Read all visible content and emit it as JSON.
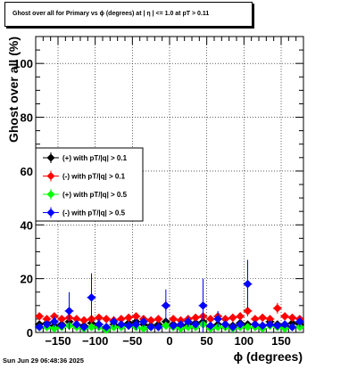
{
  "header": {
    "title": "Ghost over all for Primary vs ϕ (degrees) at |  η  | <= 1.0 at pT > 0.11"
  },
  "footer": {
    "timestamp": "Sun Jun 29 06:48:36 2025"
  },
  "chart_data": {
    "type": "scatter",
    "title": "Ghost over all for Primary vs ϕ (degrees) at |  η  | <= 1.0 at pT > 0.11",
    "xlabel": "ϕ (degrees)",
    "ylabel": "Ghost over all (%)",
    "xlim": [
      -180,
      180
    ],
    "ylim": [
      0,
      110
    ],
    "xticks": [
      -150,
      -100,
      -50,
      0,
      50,
      100,
      150
    ],
    "xtick_labels": [
      "−150",
      "−100",
      "−50",
      "0",
      "50",
      "100",
      "150"
    ],
    "yticks": [
      0,
      20,
      40,
      60,
      80,
      100
    ],
    "ytick_labels": [
      "0",
      "20",
      "40",
      "60",
      "80",
      "100"
    ],
    "grid": true,
    "legend_position": "middle-left",
    "series": [
      {
        "name": "(+) with pT/|q| > 0.1",
        "color": "#000000",
        "x": [
          -175,
          -165,
          -155,
          -145,
          -135,
          -125,
          -115,
          -105,
          -95,
          -85,
          -75,
          -65,
          -55,
          -45,
          -35,
          -25,
          -15,
          -5,
          5,
          15,
          25,
          35,
          45,
          55,
          65,
          75,
          85,
          95,
          105,
          115,
          125,
          135,
          145,
          155,
          165,
          175
        ],
        "y": [
          3,
          3.5,
          2.5,
          3,
          4,
          3,
          2.5,
          3.5,
          3,
          2,
          3,
          2.5,
          3.5,
          4,
          3,
          2.5,
          3,
          4,
          3,
          2.5,
          3,
          3.5,
          4,
          2.5,
          3,
          3,
          2.5,
          3.5,
          3,
          3,
          2.5,
          4,
          3,
          2.5,
          3.5,
          3
        ],
        "err": [
          1,
          1,
          1,
          1,
          1.5,
          1,
          1,
          1,
          1,
          1,
          1,
          1,
          1,
          1.5,
          1,
          1,
          1,
          1.5,
          1,
          1,
          1,
          1,
          1.5,
          1,
          1,
          1,
          1,
          1,
          1,
          1,
          1,
          1.5,
          1,
          1,
          1,
          1
        ]
      },
      {
        "name": "(-) with pT/|q| > 0.1",
        "color": "#ff0000",
        "x": [
          -175,
          -165,
          -155,
          -145,
          -135,
          -125,
          -115,
          -105,
          -95,
          -85,
          -75,
          -65,
          -55,
          -45,
          -35,
          -25,
          -15,
          -5,
          5,
          15,
          25,
          35,
          45,
          55,
          65,
          75,
          85,
          95,
          105,
          115,
          125,
          135,
          145,
          155,
          165,
          175
        ],
        "y": [
          6,
          5,
          6,
          5,
          5.5,
          5,
          4.5,
          5,
          5.5,
          5,
          4.5,
          5,
          5.5,
          6,
          5,
          4.5,
          5,
          10,
          5,
          4.5,
          5,
          5.5,
          6,
          5,
          6,
          5,
          5.5,
          6,
          8,
          5,
          5.5,
          5,
          9,
          6,
          5.5,
          5
        ],
        "err": [
          1,
          1,
          1,
          1,
          1,
          1,
          1,
          1,
          1,
          1,
          1,
          1,
          1,
          1,
          1,
          1,
          1,
          2,
          1,
          1,
          1,
          1,
          1,
          1,
          1,
          1,
          1,
          1.5,
          2,
          1,
          1,
          1,
          2,
          1,
          1,
          1
        ]
      },
      {
        "name": "(+) with pT/|q| > 0.5",
        "color": "#00ff00",
        "x": [
          -175,
          -165,
          -155,
          -145,
          -135,
          -125,
          -115,
          -105,
          -95,
          -85,
          -75,
          -65,
          -55,
          -45,
          -35,
          -25,
          -15,
          -5,
          5,
          15,
          25,
          35,
          45,
          55,
          65,
          75,
          85,
          95,
          105,
          115,
          125,
          135,
          145,
          155,
          165,
          175
        ],
        "y": [
          2,
          2,
          1.5,
          2,
          2.5,
          2,
          1.5,
          2,
          2,
          1,
          2,
          2,
          2.5,
          2,
          1.5,
          2,
          2,
          2.5,
          2,
          1.5,
          2,
          2,
          3,
          1.5,
          2,
          2,
          1.5,
          2,
          2,
          2,
          1.5,
          2.5,
          2,
          1.5,
          2,
          2
        ],
        "err": [
          1,
          1,
          1,
          1,
          1.5,
          1,
          1,
          1,
          1,
          1,
          1,
          1,
          1.5,
          1,
          1,
          1,
          1,
          1.5,
          1,
          1,
          1,
          1,
          2,
          1,
          1,
          1,
          1,
          1,
          1,
          1,
          1,
          1.5,
          1,
          1,
          1,
          1
        ]
      },
      {
        "name": "(-) with pT/|q| > 0.5",
        "color": "#0000ff",
        "x": [
          -175,
          -165,
          -155,
          -145,
          -135,
          -125,
          -115,
          -105,
          -95,
          -85,
          -75,
          -65,
          -55,
          -45,
          -35,
          -25,
          -15,
          -5,
          5,
          15,
          25,
          35,
          45,
          55,
          65,
          75,
          85,
          95,
          105,
          115,
          125,
          135,
          145,
          155,
          165,
          175
        ],
        "y": [
          2,
          3,
          4,
          2.5,
          8,
          3,
          2,
          13,
          3,
          2,
          4,
          3,
          2.5,
          3,
          4,
          2,
          2,
          10,
          2.5,
          3,
          4,
          3,
          10,
          2.5,
          5,
          3,
          2,
          3,
          18,
          3,
          2.5,
          3,
          2.5,
          3,
          2,
          4
        ],
        "err": [
          1,
          1,
          2,
          1,
          7,
          1,
          1,
          9,
          2,
          1,
          2,
          1,
          1,
          2,
          2,
          1,
          1,
          6,
          1,
          1,
          2,
          1,
          10,
          1,
          3,
          2,
          1,
          1,
          9,
          1,
          1,
          1,
          1,
          1,
          1,
          2
        ]
      }
    ]
  }
}
